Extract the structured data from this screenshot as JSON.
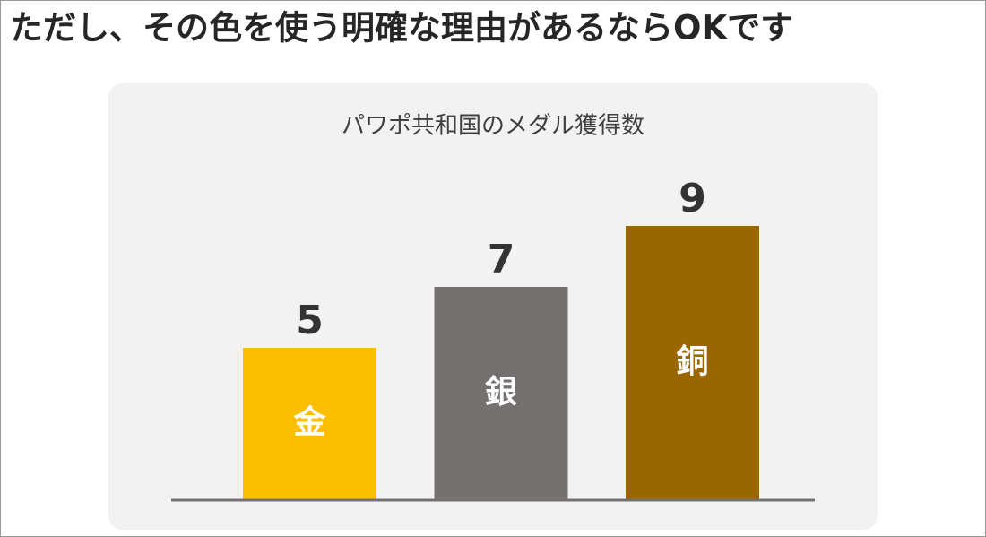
{
  "heading": "ただし、その色を使う明確な理由があるならOKです",
  "chart_data": {
    "type": "bar",
    "title": "パワポ共和国のメダル獲得数",
    "categories": [
      "金",
      "銀",
      "銅"
    ],
    "values": [
      5,
      7,
      9
    ],
    "colors": [
      "#fbbf00",
      "#767171",
      "#996600"
    ]
  }
}
